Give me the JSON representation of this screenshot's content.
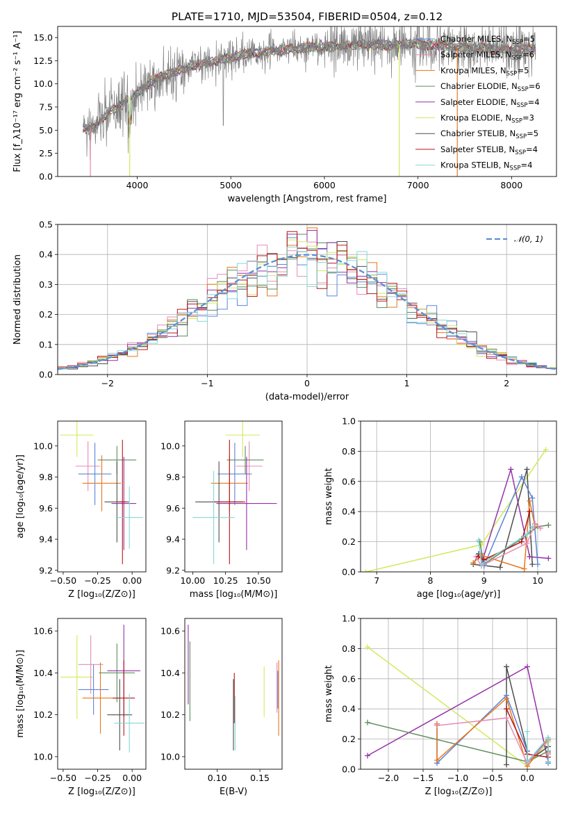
{
  "figure": {
    "title": "PLATE=1710, MJD=53504, FIBERID=0504, z=0.12"
  },
  "colors": {
    "Chabrier MILES": "#5b84d9",
    "Salpeter MILES": "#e58bb4",
    "Kroupa MILES": "#e8761c",
    "Chabrier ELODIE": "#5e8a5e",
    "Salpeter ELODIE": "#9431a8",
    "Kroupa ELODIE": "#d2e85a",
    "Chabrier STELIB": "#4d4d4d",
    "Salpeter STELIB": "#b41717",
    "Kroupa STELIB": "#85d6d6",
    "data": "#808080",
    "normal": "#5b8ed6"
  },
  "chart_data": [
    {
      "id": "spectrum",
      "type": "line",
      "xlabel": "wavelength [Angstrom, rest frame]",
      "ylabel": "Flux [f_λ10⁻¹⁷ erg cm⁻² s⁻¹ A⁻¹]",
      "xlim": [
        3150,
        8480
      ],
      "ylim": [
        0,
        16.2
      ],
      "xticks": [
        4000,
        5000,
        6000,
        7000,
        8000
      ],
      "yticks": [
        0.0,
        2.5,
        5.0,
        7.5,
        10.0,
        12.5,
        15.0
      ],
      "xtick_labels": [
        "4000",
        "5000",
        "6000",
        "7000",
        "8000"
      ],
      "ytick_labels": [
        "0.0",
        "2.5",
        "5.0",
        "7.5",
        "10.0",
        "12.5",
        "15.0"
      ],
      "continuum": {
        "x": [
          3420,
          3500,
          3560,
          3620,
          3700,
          3800,
          3900,
          4000,
          4100,
          4200,
          4300,
          4400,
          4500,
          4600,
          4700,
          4800,
          4900,
          5000,
          5200,
          5400,
          5600,
          5800,
          6000,
          6200,
          6400,
          6600,
          6800,
          7000,
          7200,
          7400,
          7600,
          7800,
          8000,
          8200
        ],
        "y": [
          5.3,
          5.2,
          5.4,
          6.2,
          7.0,
          7.5,
          8.5,
          9.0,
          9.8,
          10.4,
          10.9,
          11.3,
          11.6,
          11.9,
          12.2,
          12.4,
          12.6,
          12.9,
          13.2,
          13.5,
          13.7,
          13.9,
          14.0,
          14.1,
          14.2,
          14.2,
          14.2,
          14.3,
          14.2,
          14.0,
          13.9,
          13.8,
          13.7,
          13.8
        ]
      },
      "model_series": [
        "Chabrier MILES",
        "Salpeter MILES",
        "Kroupa MILES",
        "Chabrier ELODIE",
        "Salpeter ELODIE",
        "Kroupa ELODIE",
        "Chabrier STELIB",
        "Salpeter STELIB",
        "Kroupa STELIB"
      ],
      "legend": [
        {
          "name": "Chabrier MILES, N",
          "sub": "SSP",
          "tail": "=5"
        },
        {
          "name": "Salpeter MILES, N",
          "sub": "SSP",
          "tail": "=6"
        },
        {
          "name": "Kroupa MILES, N",
          "sub": "SSP",
          "tail": "=5"
        },
        {
          "name": "Chabrier ELODIE, N",
          "sub": "SSP",
          "tail": "=6"
        },
        {
          "name": "Salpeter ELODIE, N",
          "sub": "SSP",
          "tail": "=4"
        },
        {
          "name": "Kroupa ELODIE, N",
          "sub": "SSP",
          "tail": "=3"
        },
        {
          "name": "Chabrier STELIB, N",
          "sub": "SSP",
          "tail": "=5"
        },
        {
          "name": "Salpeter STELIB, N",
          "sub": "SSP",
          "tail": "=4"
        },
        {
          "name": "Kroupa STELIB, N",
          "sub": "SSP",
          "tail": "=4"
        }
      ],
      "legend_position": "right",
      "drops": [
        {
          "x": 3920,
          "series": "Kroupa ELODIE"
        },
        {
          "x": 3500,
          "series": "Salpeter MILES"
        },
        {
          "x": 6800,
          "series": "Kroupa ELODIE"
        },
        {
          "x": 7420,
          "series": "Kroupa MILES"
        }
      ]
    },
    {
      "id": "residuals",
      "type": "histogram",
      "xlabel": "(data-model)/error",
      "ylabel": "Normed distribution",
      "xlim": [
        -2.5,
        2.5
      ],
      "ylim": [
        0,
        0.5
      ],
      "xticks": [
        -2,
        -1,
        0,
        1,
        2
      ],
      "xtick_labels": [
        "−2",
        "−1",
        "0",
        "1",
        "2"
      ],
      "yticks": [
        0.0,
        0.1,
        0.2,
        0.3,
        0.4,
        0.5
      ],
      "ytick_labels": [
        "0.0",
        "0.1",
        "0.2",
        "0.3",
        "0.4",
        "0.5"
      ],
      "bin_width": 0.1,
      "grid": true,
      "legend": "𝒩(0, 1)",
      "legend_position": "top-right"
    },
    {
      "id": "age-Z",
      "type": "errorbar",
      "xlabel": "Z [log₁₀(Z/Z⊙)]",
      "ylabel": "age  [log₁₀(age/yr)]",
      "xlim": [
        -0.54,
        0.1
      ],
      "ylim": [
        9.19,
        10.16
      ],
      "xticks": [
        -0.5,
        -0.25,
        0.0
      ],
      "xtick_labels": [
        "−0.50",
        "−0.25",
        "0.00"
      ],
      "yticks": [
        9.2,
        9.4,
        9.6,
        9.8,
        10.0
      ],
      "ytick_labels": [
        "9.2",
        "9.4",
        "9.6",
        "9.8",
        "10.0"
      ],
      "points": [
        {
          "s": "Kroupa ELODIE",
          "x": -0.4,
          "xe": 0.12,
          "y": 10.07,
          "ye": 0.14
        },
        {
          "s": "Salpeter MILES",
          "x": -0.32,
          "xe": 0.09,
          "y": 9.87,
          "ye": 0.16
        },
        {
          "s": "Chabrier MILES",
          "x": -0.27,
          "xe": 0.12,
          "y": 9.82,
          "ye": 0.2
        },
        {
          "s": "Kroupa MILES",
          "x": -0.22,
          "xe": 0.14,
          "y": 9.76,
          "ye": 0.18
        },
        {
          "s": "Chabrier ELODIE",
          "x": -0.11,
          "xe": 0.14,
          "y": 9.91,
          "ye": 0.09
        },
        {
          "s": "Chabrier STELIB",
          "x": -0.11,
          "xe": 0.09,
          "y": 9.64,
          "ye": 0.26
        },
        {
          "s": "Salpeter ELODIE",
          "x": -0.06,
          "xe": 0.09,
          "y": 9.63,
          "ye": 0.3
        },
        {
          "s": "Salpeter STELIB",
          "x": -0.07,
          "xe": 0.03,
          "y": 9.64,
          "ye": 0.4
        },
        {
          "s": "Kroupa STELIB",
          "x": -0.02,
          "xe": 0.1,
          "y": 9.54,
          "ye": 0.2
        }
      ]
    },
    {
      "id": "age-mass",
      "type": "errorbar",
      "xlabel": "mass [log₁₀(M/M⊙)]",
      "ylabel": "",
      "xlim": [
        9.94,
        10.68
      ],
      "ylim": [
        9.19,
        10.16
      ],
      "xticks": [
        10.0,
        10.25,
        10.5
      ],
      "xtick_labels": [
        "10.00",
        "10.25",
        "10.50"
      ],
      "yticks": [
        9.2,
        9.4,
        9.6,
        9.8,
        10.0
      ],
      "ytick_labels": [
        "9.2",
        "9.4",
        "9.6",
        "9.8",
        "10.0"
      ],
      "points": [
        {
          "s": "Kroupa ELODIE",
          "x": 10.38,
          "xe": 0.13,
          "y": 10.07,
          "ye": 0.14
        },
        {
          "s": "Salpeter MILES",
          "x": 10.43,
          "xe": 0.1,
          "y": 9.87,
          "ye": 0.16
        },
        {
          "s": "Chabrier MILES",
          "x": 10.32,
          "xe": 0.13,
          "y": 9.82,
          "ye": 0.2
        },
        {
          "s": "Kroupa MILES",
          "x": 10.28,
          "xe": 0.14,
          "y": 9.76,
          "ye": 0.18
        },
        {
          "s": "Chabrier ELODIE",
          "x": 10.4,
          "xe": 0.14,
          "y": 9.91,
          "ye": 0.09
        },
        {
          "s": "Chabrier STELIB",
          "x": 10.2,
          "xe": 0.18,
          "y": 9.64,
          "ye": 0.26
        },
        {
          "s": "Salpeter ELODIE",
          "x": 10.41,
          "xe": 0.23,
          "y": 9.63,
          "ye": 0.3
        },
        {
          "s": "Salpeter STELIB",
          "x": 10.28,
          "xe": 0.12,
          "y": 9.64,
          "ye": 0.4
        },
        {
          "s": "Kroupa STELIB",
          "x": 10.16,
          "xe": 0.16,
          "y": 9.54,
          "ye": 0.3
        }
      ]
    },
    {
      "id": "weight-age",
      "type": "line",
      "xlabel": "age  [log₁₀(age/yr)]",
      "ylabel": "mass weight",
      "xlim": [
        6.7,
        10.35
      ],
      "ylim": [
        0,
        1.0
      ],
      "xticks": [
        7,
        8,
        9,
        10
      ],
      "xtick_labels": [
        "7",
        "8",
        "9",
        "10"
      ],
      "yticks": [
        0.0,
        0.2,
        0.4,
        0.6,
        0.8,
        1.0
      ],
      "ytick_labels": [
        "0.0",
        "0.2",
        "0.4",
        "0.6",
        "0.8",
        "1.0"
      ],
      "series": [
        {
          "name": "Kroupa ELODIE",
          "x": [
            6.8,
            8.95,
            10.15
          ],
          "y": [
            0.0,
            0.18,
            0.81
          ]
        },
        {
          "name": "Salpeter ELODIE",
          "x": [
            8.95,
            9.5,
            9.85,
            10.2
          ],
          "y": [
            0.05,
            0.68,
            0.1,
            0.09
          ]
        },
        {
          "name": "Chabrier STELIB",
          "x": [
            8.9,
            8.8,
            9.3,
            9.8,
            9.9
          ],
          "y": [
            0.12,
            0.05,
            0.03,
            0.68,
            0.05
          ]
        },
        {
          "name": "Chabrier ELODIE",
          "x": [
            8.92,
            9.0,
            9.7,
            10.0,
            10.2
          ],
          "y": [
            0.2,
            0.05,
            0.22,
            0.3,
            0.31
          ]
        },
        {
          "name": "Chabrier MILES",
          "x": [
            8.95,
            9.0,
            9.7,
            9.9,
            10.0
          ],
          "y": [
            0.12,
            0.04,
            0.63,
            0.49,
            0.05
          ]
        },
        {
          "name": "Kroupa MILES",
          "x": [
            8.8,
            8.95,
            9.75,
            9.85,
            9.95
          ],
          "y": [
            0.06,
            0.11,
            0.02,
            0.47,
            0.3
          ]
        },
        {
          "name": "Salpeter MILES",
          "x": [
            8.85,
            8.95,
            9.8,
            9.95,
            10.05
          ],
          "y": [
            0.1,
            0.04,
            0.19,
            0.32,
            0.29
          ]
        },
        {
          "name": "Salpeter STELIB",
          "x": [
            8.9,
            9.0,
            9.7,
            9.85
          ],
          "y": [
            0.1,
            0.08,
            0.2,
            0.4
          ]
        },
        {
          "name": "Kroupa STELIB",
          "x": [
            8.9,
            8.95,
            9.8,
            9.9
          ],
          "y": [
            0.21,
            0.05,
            0.25,
            0.3
          ]
        }
      ]
    },
    {
      "id": "mass-Z",
      "type": "errorbar",
      "xlabel": "Z [log₁₀(Z/Z⊙)]",
      "ylabel": "mass [log₁₀(M/M⊙)]",
      "xlim": [
        -0.54,
        0.1
      ],
      "ylim": [
        9.94,
        10.66
      ],
      "xticks": [
        -0.5,
        -0.25,
        0.0
      ],
      "xtick_labels": [
        "−0.50",
        "−0.25",
        "0.00"
      ],
      "yticks": [
        10.0,
        10.2,
        10.4,
        10.6
      ],
      "ytick_labels": [
        "10.0",
        "10.2",
        "10.4",
        "10.6"
      ],
      "points": [
        {
          "s": "Kroupa ELODIE",
          "x": -0.4,
          "xe": 0.12,
          "y": 10.38,
          "ye": 0.2
        },
        {
          "s": "Salpeter MILES",
          "x": -0.3,
          "xe": 0.09,
          "y": 10.44,
          "ye": 0.14
        },
        {
          "s": "Chabrier MILES",
          "x": -0.28,
          "xe": 0.11,
          "y": 10.32,
          "ye": 0.12
        },
        {
          "s": "Kroupa MILES",
          "x": -0.23,
          "xe": 0.13,
          "y": 10.28,
          "ye": 0.17
        },
        {
          "s": "Chabrier ELODIE",
          "x": -0.11,
          "xe": 0.13,
          "y": 10.4,
          "ye": 0.14
        },
        {
          "s": "Chabrier STELIB",
          "x": -0.09,
          "xe": 0.09,
          "y": 10.2,
          "ye": 0.17
        },
        {
          "s": "Salpeter ELODIE",
          "x": -0.06,
          "xe": 0.12,
          "y": 10.41,
          "ye": 0.22
        },
        {
          "s": "Salpeter STELIB",
          "x": -0.06,
          "xe": 0.08,
          "y": 10.28,
          "ye": 0.18
        },
        {
          "s": "Kroupa STELIB",
          "x": -0.02,
          "xe": 0.11,
          "y": 10.16,
          "ye": 0.14
        }
      ]
    },
    {
      "id": "mass-EBV",
      "type": "errorbar",
      "xlabel": "E(B-V)",
      "ylabel": "",
      "xlim": [
        0.062,
        0.176
      ],
      "ylim": [
        9.94,
        10.66
      ],
      "xticks": [
        0.1,
        0.15
      ],
      "xtick_labels": [
        "0.10",
        "0.15"
      ],
      "yticks": [
        10.0,
        10.2,
        10.4,
        10.6
      ],
      "ytick_labels": [
        "10.0",
        "10.2",
        "10.4",
        "10.6"
      ],
      "points": [
        {
          "s": "Salpeter ELODIE",
          "x": 0.066,
          "xe": 0,
          "y": 10.44,
          "ye": 0.19
        },
        {
          "s": "Chabrier ELODIE",
          "x": 0.068,
          "xe": 0,
          "y": 10.36,
          "ye": 0.19
        },
        {
          "s": "Salpeter STELIB",
          "x": 0.12,
          "xe": 0,
          "y": 10.28,
          "ye": 0.12
        },
        {
          "s": "Chabrier STELIB",
          "x": 0.119,
          "xe": 0,
          "y": 10.2,
          "ye": 0.17
        },
        {
          "s": "Kroupa STELIB",
          "x": 0.121,
          "xe": 0,
          "y": 10.16,
          "ye": 0.13
        },
        {
          "s": "Kroupa ELODIE",
          "x": 0.155,
          "xe": 0,
          "y": 10.31,
          "ye": 0.12
        },
        {
          "s": "Salpeter MILES",
          "x": 0.17,
          "xe": 0,
          "y": 10.33,
          "ye": 0.12
        },
        {
          "s": "Kroupa MILES",
          "x": 0.172,
          "xe": 0,
          "y": 10.28,
          "ye": 0.18
        },
        {
          "s": "Chabrier MILES",
          "x": 0.171,
          "xe": 0,
          "y": 10.32,
          "ye": 0.09
        }
      ]
    },
    {
      "id": "weight-Z",
      "type": "line",
      "xlabel": "Z [log₁₀(Z/Z⊙)]",
      "ylabel": "mass weight",
      "xlim": [
        -2.4,
        0.42
      ],
      "ylim": [
        0,
        1.0
      ],
      "xticks": [
        -2.0,
        -1.5,
        -1.0,
        -0.5,
        0.0
      ],
      "xtick_labels": [
        "−2.0",
        "−1.5",
        "−1.0",
        "−0.5",
        "0.0"
      ],
      "yticks": [
        0.0,
        0.2,
        0.4,
        0.6,
        0.8,
        1.0
      ],
      "ytick_labels": [
        "0.0",
        "0.2",
        "0.4",
        "0.6",
        "0.8",
        "1.0"
      ],
      "series": [
        {
          "name": "Kroupa ELODIE",
          "x": [
            -2.3,
            0.0,
            0.3
          ],
          "y": [
            0.81,
            0.02,
            0.18
          ]
        },
        {
          "name": "Salpeter ELODIE",
          "x": [
            -2.3,
            0.0,
            0.3,
            0.3
          ],
          "y": [
            0.09,
            0.68,
            0.05,
            0.1
          ]
        },
        {
          "name": "Chabrier ELODIE",
          "x": [
            -2.3,
            0.0,
            0.3,
            0.3
          ],
          "y": [
            0.31,
            0.05,
            0.12,
            0.2
          ]
        },
        {
          "name": "Chabrier STELIB",
          "x": [
            -0.3,
            -0.3,
            0.0,
            0.0,
            0.3,
            0.3
          ],
          "y": [
            0.03,
            0.68,
            0.12,
            0.05,
            0.15,
            0.05
          ]
        },
        {
          "name": "Chabrier MILES",
          "x": [
            -1.3,
            -1.3,
            -0.3,
            0.0,
            0.0,
            0.3,
            0.3
          ],
          "y": [
            0.3,
            0.04,
            0.49,
            0.12,
            0.05,
            0.2,
            0.04
          ]
        },
        {
          "name": "Kroupa MILES",
          "x": [
            -1.3,
            -1.3,
            -0.3,
            0.0,
            0.3,
            0.3
          ],
          "y": [
            0.3,
            0.06,
            0.47,
            0.02,
            0.2,
            0.11
          ]
        },
        {
          "name": "Salpeter MILES",
          "x": [
            -1.3,
            -0.3,
            0.0,
            0.3,
            0.3
          ],
          "y": [
            0.29,
            0.34,
            0.04,
            0.19,
            0.1
          ]
        },
        {
          "name": "Salpeter STELIB",
          "x": [
            -0.3,
            0.0,
            0.3
          ],
          "y": [
            0.4,
            0.1,
            0.08
          ]
        },
        {
          "name": "Kroupa STELIB",
          "x": [
            0.0,
            0.0,
            0.3,
            0.3
          ],
          "y": [
            0.25,
            0.05,
            0.21,
            0.05
          ]
        }
      ]
    }
  ]
}
